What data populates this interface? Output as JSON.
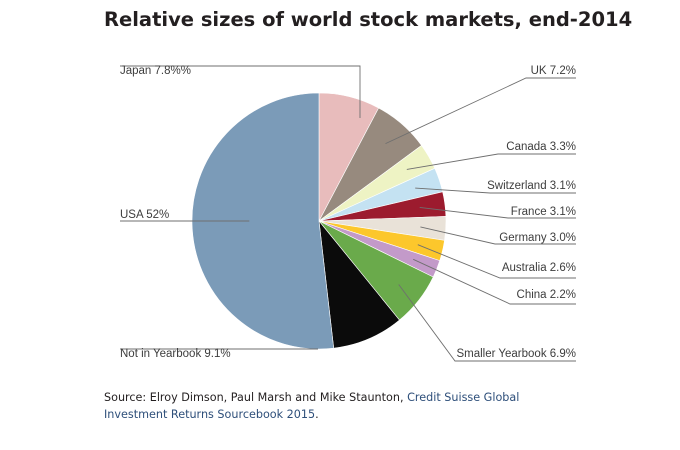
{
  "title": "Relative sizes of world stock markets, end-2014",
  "source": {
    "prefix": "Source: Elroy Dimson, Paul Marsh and Mike Staunton, ",
    "link_text": "Credit Suisse Global Investment Returns Sourcebook 2015",
    "suffix": "."
  },
  "chart_data": {
    "type": "pie",
    "title": "Relative sizes of world stock markets, end-2014",
    "slices": [
      {
        "name": "Japan",
        "value": 7.8,
        "label": "Japan 7.8%%",
        "color": "#e8bcbc"
      },
      {
        "name": "UK",
        "value": 7.2,
        "label": "UK 7.2%",
        "color": "#978a7e"
      },
      {
        "name": "Canada",
        "value": 3.3,
        "label": "Canada 3.3%",
        "color": "#eef3c4"
      },
      {
        "name": "Switzerland",
        "value": 3.1,
        "label": "Switzerland 3.1%",
        "color": "#c4e2f2"
      },
      {
        "name": "France",
        "value": 3.1,
        "label": "France 3.1%",
        "color": "#9c1b2e"
      },
      {
        "name": "Germany",
        "value": 3.0,
        "label": "Germany 3.0%",
        "color": "#e9e2d8"
      },
      {
        "name": "Australia",
        "value": 2.6,
        "label": "Australia 2.6%",
        "color": "#fcc72c"
      },
      {
        "name": "China",
        "value": 2.2,
        "label": "China 2.2%",
        "color": "#c39ac9"
      },
      {
        "name": "Smaller Yearbook",
        "value": 6.9,
        "label": "Smaller Yearbook 6.9%",
        "color": "#6aaa4b"
      },
      {
        "name": "Not in Yearbook",
        "value": 9.1,
        "label": "Not in Yearbook 9.1%",
        "color": "#0b0b0b"
      },
      {
        "name": "USA",
        "value": 52,
        "label": "USA 52%",
        "color": "#7b9bb8"
      }
    ]
  }
}
